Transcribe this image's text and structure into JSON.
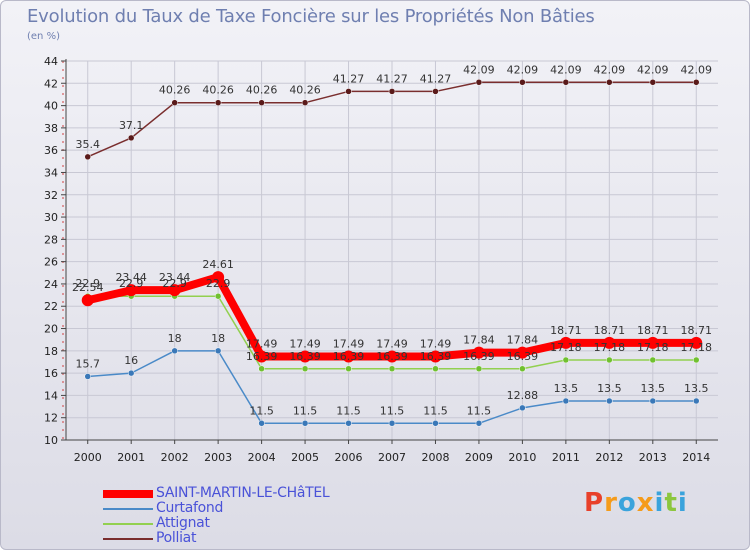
{
  "header": {
    "title": "Evolution du Taux de Taxe Foncière sur les Propriétés Non Bâties",
    "unit": "(en %)"
  },
  "logo": {
    "letters": [
      "P",
      "r",
      "o",
      "x",
      "i",
      "t",
      "i"
    ],
    "colors": [
      "#e8402a",
      "#f59b1a",
      "#3aa3dc",
      "#f59b1a",
      "#3aa3dc",
      "#8cc63e",
      "#3aa3dc"
    ]
  },
  "chart_data": {
    "type": "line",
    "title": "Evolution du Taux de Taxe Foncière sur les Propriétés Non Bâties",
    "ylabel": "(en %)",
    "xlabel": "",
    "categories": [
      "2000",
      "2001",
      "2002",
      "2003",
      "2004",
      "2005",
      "2006",
      "2007",
      "2008",
      "2009",
      "2010",
      "2011",
      "2012",
      "2013",
      "2014"
    ],
    "ylim": [
      10,
      44
    ],
    "yticks": [
      10,
      12,
      14,
      16,
      18,
      20,
      22,
      24,
      26,
      28,
      30,
      32,
      34,
      36,
      38,
      40,
      42,
      44
    ],
    "legend_position": "bottom-left",
    "series": [
      {
        "name": "Polliat",
        "color": "#7a2e2e",
        "point_color": "#5a1a1a",
        "width": 1.5,
        "marker": 3,
        "values": [
          35.4,
          37.1,
          40.26,
          40.26,
          40.26,
          40.26,
          41.27,
          41.27,
          41.27,
          42.09,
          42.09,
          42.09,
          42.09,
          42.09,
          42.09
        ],
        "labels": [
          "35.4",
          "37.1",
          "40.26",
          "40.26",
          "40.26",
          "40.26",
          "41.27",
          "41.27",
          "41.27",
          "42.09",
          "42.09",
          "42.09",
          "42.09",
          "42.09",
          "42.09"
        ]
      },
      {
        "name": "Curtafond",
        "color": "#4a8ac8",
        "point_color": "#3a78b8",
        "width": 1.5,
        "marker": 3,
        "values": [
          15.7,
          16,
          18,
          18,
          11.5,
          11.5,
          11.5,
          11.5,
          11.5,
          11.5,
          12.88,
          13.5,
          13.5,
          13.5,
          13.5
        ],
        "labels": [
          "15.7",
          "16",
          "18",
          "18",
          "11.5",
          "11.5",
          "11.5",
          "11.5",
          "11.5",
          "11.5",
          "12.88",
          "13.5",
          "13.5",
          "13.5",
          "13.5"
        ]
      },
      {
        "name": "Attignat",
        "color": "#92d050",
        "point_color": "#70c030",
        "width": 1.5,
        "marker": 3,
        "values": [
          22.9,
          22.9,
          22.9,
          22.9,
          16.39,
          16.39,
          16.39,
          16.39,
          16.39,
          16.39,
          16.39,
          17.18,
          17.18,
          17.18,
          17.18
        ],
        "labels": [
          "22.9",
          "22.9",
          "22.9",
          "22.9",
          "16.39",
          "16.39",
          "16.39",
          "16.39",
          "16.39",
          "16.39",
          "16.39",
          "17.18",
          "17.18",
          "17.18",
          "17.18"
        ]
      },
      {
        "name": "SAINT-MARTIN-LE-CHâTEL",
        "color": "#ff0000",
        "point_color": "#ff0000",
        "width": 8,
        "marker": 6,
        "values": [
          22.54,
          23.44,
          23.44,
          24.61,
          17.49,
          17.49,
          17.49,
          17.49,
          17.49,
          17.84,
          17.84,
          18.71,
          18.71,
          18.71,
          18.71
        ],
        "labels": [
          "22.54",
          "23.44",
          "23.44",
          "24.61",
          "17.49",
          "17.49",
          "17.49",
          "17.49",
          "17.49",
          "17.84",
          "17.84",
          "18.71",
          "18.71",
          "18.71",
          "18.71"
        ]
      }
    ],
    "legend_order": [
      "SAINT-MARTIN-LE-CHâTEL",
      "Curtafond",
      "Attignat",
      "Polliat"
    ]
  }
}
